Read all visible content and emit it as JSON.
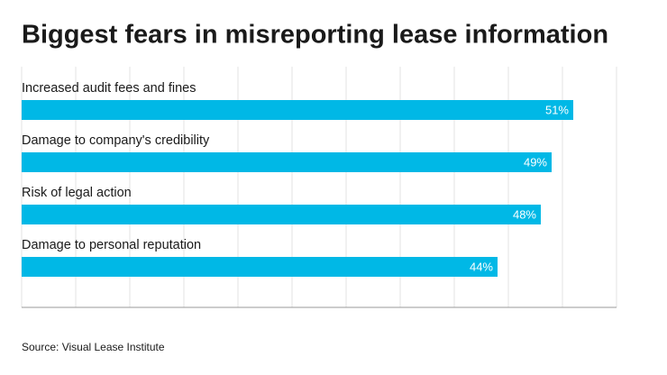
{
  "chart_data": {
    "type": "bar",
    "orientation": "horizontal",
    "title": "Biggest fears in misreporting lease information",
    "categories": [
      "Increased audit fees and fines",
      "Damage to company's credibility",
      "Risk of legal action",
      "Damage to personal reputation"
    ],
    "values": [
      51,
      49,
      48,
      44
    ],
    "value_labels": [
      "51%",
      "49%",
      "48%",
      "44%"
    ],
    "color": "#00b8e6",
    "xlim": [
      0,
      55
    ],
    "xticks": [
      0,
      5,
      10,
      15,
      20,
      25,
      30,
      35,
      40,
      45,
      50,
      55
    ],
    "grid": true,
    "source": "Source: Visual Lease Institute"
  }
}
